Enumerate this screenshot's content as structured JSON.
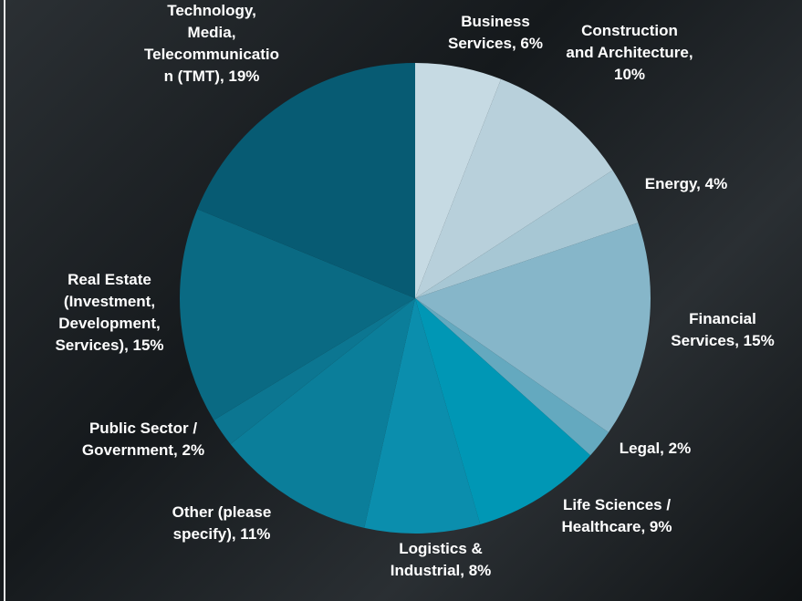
{
  "chart_data": {
    "type": "pie",
    "values": [
      6,
      10,
      4,
      15,
      2,
      9,
      8,
      11,
      2,
      15,
      19
    ],
    "value_labels": [
      "Business Services, 6%",
      "Construction and Architecture, 10%",
      "Energy, 4%",
      "Financial Services, 15%",
      "Legal, 2%",
      "Life Sciences / Healthcare, 9%",
      "Logistics & Industrial, 8%",
      "Other (please specify), 11%",
      "Public Sector / Government, 2%",
      "Real Estate (Investment, Development, Services), 15%",
      "Technology, Media, Telecommunication (TMT), 19%"
    ],
    "colors": [
      "#c6dae3",
      "#b8d0db",
      "#a7c7d4",
      "#86b6c9",
      "#64a9bf",
      "#0097b5",
      "#0b8ead",
      "#0b7e9a",
      "#0c7691",
      "#0a6a83",
      "#075b73"
    ]
  }
}
